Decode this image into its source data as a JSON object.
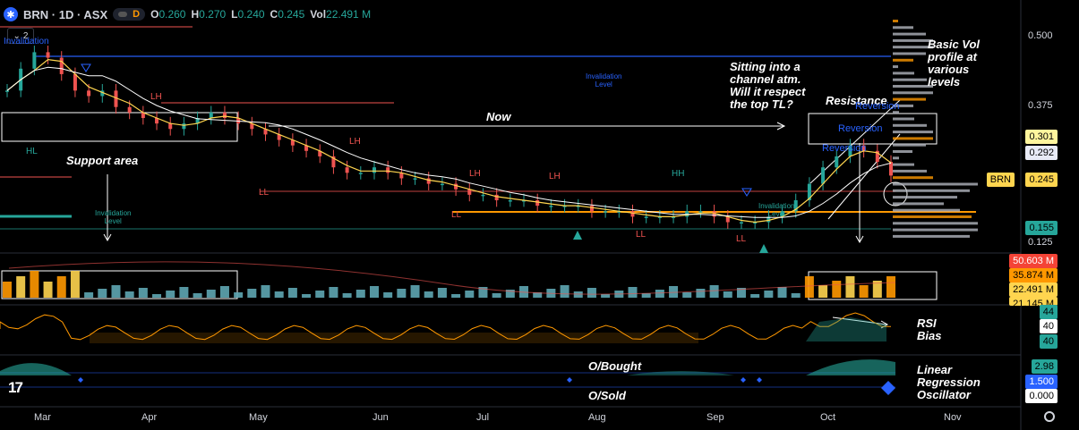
{
  "header": {
    "symbol": "BRN · 1D · ASX",
    "mode_label": "D",
    "open_label": "O",
    "open": "0.260",
    "high_label": "H",
    "high": "0.270",
    "low_label": "L",
    "low": "0.240",
    "close_label": "C",
    "close": "0.245",
    "vol_label": "Vol",
    "vol": "22.491 M",
    "collapse_count": "2"
  },
  "price_axis": {
    "ticks": [
      "0.500",
      "0.375",
      "0.125"
    ],
    "tags": {
      "t301": "0.301",
      "t292": "0.292",
      "brn_label": "BRN",
      "t245": "0.245",
      "t155": "0.155"
    }
  },
  "volume_axis": {
    "v1": "50.603 M",
    "v2": "35.874 M",
    "v3": "22.491 M",
    "v4": "21.145 M"
  },
  "rsi_axis": {
    "r1": "44",
    "r2": "40",
    "r3": "40"
  },
  "osc_axis": {
    "o1": "2.98",
    "o2": "1.500",
    "o3": "0.000"
  },
  "months": [
    "Mar",
    "Apr",
    "May",
    "Jun",
    "Jul",
    "Aug",
    "Sep",
    "Oct",
    "Nov"
  ],
  "annotations": {
    "support": "Support area",
    "now": "Now",
    "channel": [
      "Sitting into a",
      "channel atm.",
      "Will it respect",
      "the top TL?"
    ],
    "resistance": "Resistance",
    "volprofile": [
      "Basic Vol",
      "profile at",
      "various",
      "levels"
    ],
    "rsi": [
      "RSI",
      "Bias"
    ],
    "lro": [
      "Linear",
      "Regression",
      "Oscillator"
    ],
    "obought": "O/Bought",
    "osold": "O/Sold"
  },
  "chart_labels": {
    "invalidation_top_left": "Invalidation",
    "invalidation1": [
      "Invalidation",
      "Level"
    ],
    "invalidation2": [
      "Invalidation",
      "Level"
    ],
    "invalidation3": [
      "Invalidation",
      "Level"
    ],
    "reversion": "Reversion",
    "hl": "HL",
    "hh": "HH",
    "lh": "LH",
    "ll": "LL"
  },
  "colors": {
    "bg": "#000000",
    "up": "#26a69a",
    "down": "#ef5350",
    "yellow": "#ffd54f",
    "blue": "#2962ff",
    "orange": "#ff9800",
    "grid": "#131722",
    "axis_text": "#d1d4dc"
  },
  "chart_data": {
    "type": "candlestick",
    "symbol": "BRN",
    "interval": "1D",
    "x": [
      "Mar",
      "Apr",
      "May",
      "Jun",
      "Jul",
      "Aug",
      "Sep",
      "Oct",
      "Nov"
    ],
    "close_series": [
      0.4,
      0.44,
      0.47,
      0.46,
      0.43,
      0.4,
      0.39,
      0.4,
      0.37,
      0.36,
      0.35,
      0.34,
      0.33,
      0.34,
      0.35,
      0.36,
      0.35,
      0.34,
      0.33,
      0.32,
      0.31,
      0.3,
      0.29,
      0.28,
      0.26,
      0.25,
      0.25,
      0.26,
      0.25,
      0.24,
      0.24,
      0.23,
      0.23,
      0.22,
      0.21,
      0.21,
      0.2,
      0.2,
      0.2,
      0.19,
      0.19,
      0.19,
      0.19,
      0.18,
      0.18,
      0.18,
      0.17,
      0.17,
      0.17,
      0.17,
      0.18,
      0.18,
      0.17,
      0.16,
      0.16,
      0.16,
      0.17,
      0.18,
      0.2,
      0.23,
      0.26,
      0.28,
      0.3,
      0.29,
      0.27,
      0.245
    ],
    "ylim": [
      0.1,
      0.52
    ],
    "last": 0.245,
    "levels": [
      0.301,
      0.292,
      0.245,
      0.155
    ],
    "volume_levels_m": [
      50.603,
      35.874,
      22.491,
      21.145
    ]
  }
}
